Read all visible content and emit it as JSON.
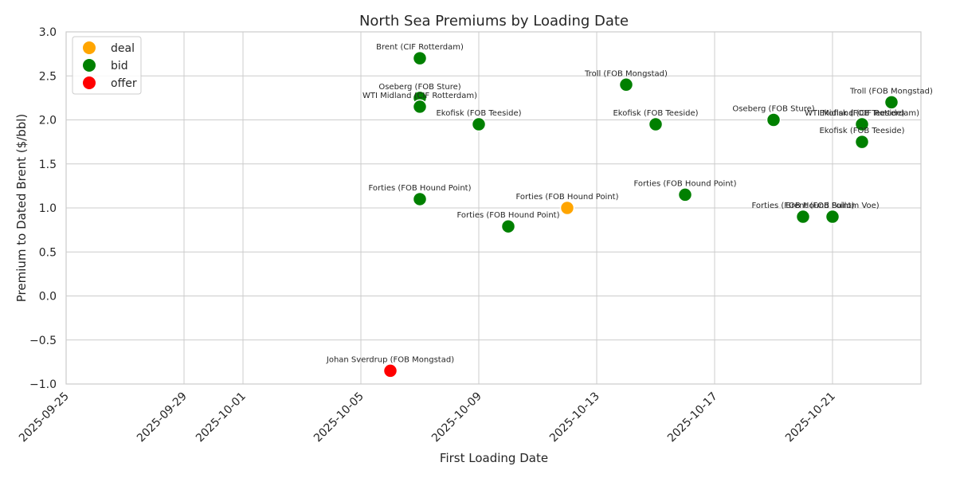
{
  "chart_data": {
    "type": "scatter",
    "title": "North Sea Premiums by Loading Date",
    "xlabel": "First Loading Date",
    "ylabel": "Premium to Dated Brent ($/bbl)",
    "xlim": [
      "2025-09-25",
      "2025-10-24"
    ],
    "ylim": [
      -1.0,
      3.0
    ],
    "x_ticks": [
      "2025-09-25",
      "2025-09-29",
      "2025-10-01",
      "2025-10-05",
      "2025-10-09",
      "2025-10-13",
      "2025-10-17",
      "2025-10-21"
    ],
    "y_ticks": [
      "−1.0",
      "−0.5",
      "0.0",
      "0.5",
      "1.0",
      "1.5",
      "2.0",
      "2.5",
      "3.0"
    ],
    "grid": true,
    "legend_position": "top-left",
    "legend": [
      {
        "name": "deal",
        "color": "#ffa500"
      },
      {
        "name": "bid",
        "color": "#008000"
      },
      {
        "name": "offer",
        "color": "#ff0000"
      }
    ],
    "points": [
      {
        "x": "2025-10-06",
        "y": -0.85,
        "label": "Johan Sverdrup (FOB Mongstad)",
        "type": "offer"
      },
      {
        "x": "2025-10-07",
        "y": 2.7,
        "label": "Brent (CIF Rotterdam)",
        "type": "bid"
      },
      {
        "x": "2025-10-07",
        "y": 2.25,
        "label": "Oseberg (FOB Sture)",
        "type": "bid"
      },
      {
        "x": "2025-10-07",
        "y": 2.15,
        "label": "WTI Midland (CIF Rotterdam)",
        "type": "bid"
      },
      {
        "x": "2025-10-07",
        "y": 1.1,
        "label": "Forties (FOB Hound Point)",
        "type": "bid"
      },
      {
        "x": "2025-10-09",
        "y": 1.95,
        "label": "Ekofisk (FOB Teeside)",
        "type": "bid"
      },
      {
        "x": "2025-10-10",
        "y": 0.79,
        "label": "Forties (FOB Hound Point)",
        "type": "bid"
      },
      {
        "x": "2025-10-12",
        "y": 1.0,
        "label": "Forties (FOB Hound Point)",
        "type": "deal"
      },
      {
        "x": "2025-10-14",
        "y": 2.4,
        "label": "Troll (FOB Mongstad)",
        "type": "bid"
      },
      {
        "x": "2025-10-15",
        "y": 1.95,
        "label": "Ekofisk (FOB Teeside)",
        "type": "bid"
      },
      {
        "x": "2025-10-16",
        "y": 1.15,
        "label": "Forties (FOB Hound Point)",
        "type": "bid"
      },
      {
        "x": "2025-10-19",
        "y": 2.0,
        "label": "Oseberg (FOB Sture)",
        "type": "bid"
      },
      {
        "x": "2025-10-20",
        "y": 0.9,
        "label": "Forties (FOB Hound Point)",
        "type": "bid"
      },
      {
        "x": "2025-10-21",
        "y": 0.9,
        "label": "Brent (FOB Sullom Voe)",
        "type": "bid"
      },
      {
        "x": "2025-10-22",
        "y": 1.95,
        "label": "Ekofisk (FOB Teeside)",
        "type": "bid"
      },
      {
        "x": "2025-10-22",
        "y": 1.95,
        "label": "WTI Midland (CIF Rotterdam)",
        "type": "bid"
      },
      {
        "x": "2025-10-22",
        "y": 1.75,
        "label": "Ekofisk (FOB Teeside)",
        "type": "bid"
      },
      {
        "x": "2025-10-23",
        "y": 2.2,
        "label": "Troll (FOB Mongstad)",
        "type": "bid"
      }
    ]
  }
}
